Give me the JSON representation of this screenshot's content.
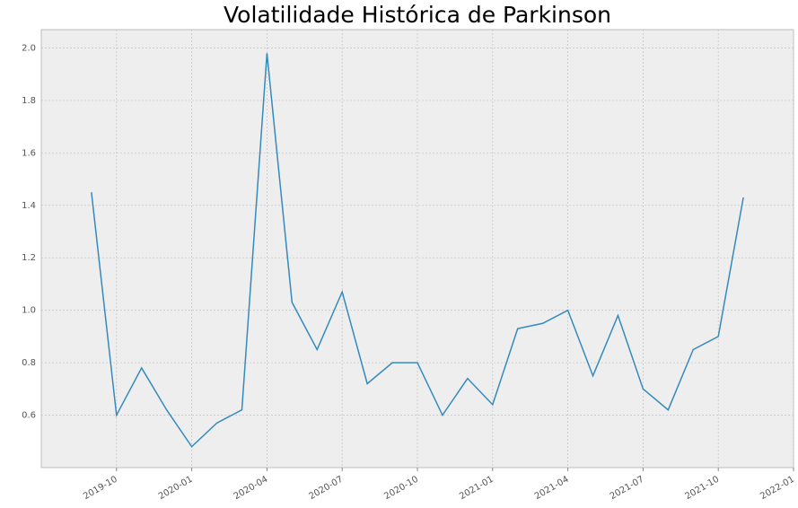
{
  "chart_data": {
    "type": "line",
    "title": "Volatilidade Histórica de Parkinson",
    "x": [
      "2019-09",
      "2019-10",
      "2019-11",
      "2019-12",
      "2020-01",
      "2020-02",
      "2020-03",
      "2020-04",
      "2020-05",
      "2020-06",
      "2020-07",
      "2020-08",
      "2020-09",
      "2020-10",
      "2020-11",
      "2020-12",
      "2021-01",
      "2021-02",
      "2021-03",
      "2021-04",
      "2021-05",
      "2021-06",
      "2021-07",
      "2021-08",
      "2021-09",
      "2021-10",
      "2021-11"
    ],
    "series": [
      {
        "color": "#348abd",
        "values": [
          1.45,
          0.6,
          0.78,
          0.62,
          0.48,
          0.57,
          0.62,
          1.98,
          1.03,
          0.85,
          1.07,
          0.72,
          0.8,
          0.8,
          0.6,
          0.74,
          0.64,
          0.93,
          0.95,
          1.0,
          0.75,
          0.98,
          0.7,
          0.62,
          0.85,
          0.9,
          1.43
        ]
      }
    ],
    "xlim": [
      "2019-07",
      "2022-01"
    ],
    "xticks": [
      "2019-10",
      "2020-01",
      "2020-04",
      "2020-07",
      "2020-10",
      "2021-01",
      "2021-04",
      "2021-07",
      "2021-10",
      "2022-01"
    ],
    "ylim": [
      0.4,
      2.07
    ],
    "yticks": [
      {
        "value": 0.6,
        "label": "0.6"
      },
      {
        "value": 0.8,
        "label": "0.8"
      },
      {
        "value": 1.0,
        "label": "1.0"
      },
      {
        "value": 1.2,
        "label": "1.2"
      },
      {
        "value": 1.4,
        "label": "1.4"
      },
      {
        "value": 1.6,
        "label": "1.6"
      },
      {
        "value": 1.8,
        "label": "1.8"
      },
      {
        "value": 2.0,
        "label": "2.0"
      }
    ],
    "grid": true
  }
}
